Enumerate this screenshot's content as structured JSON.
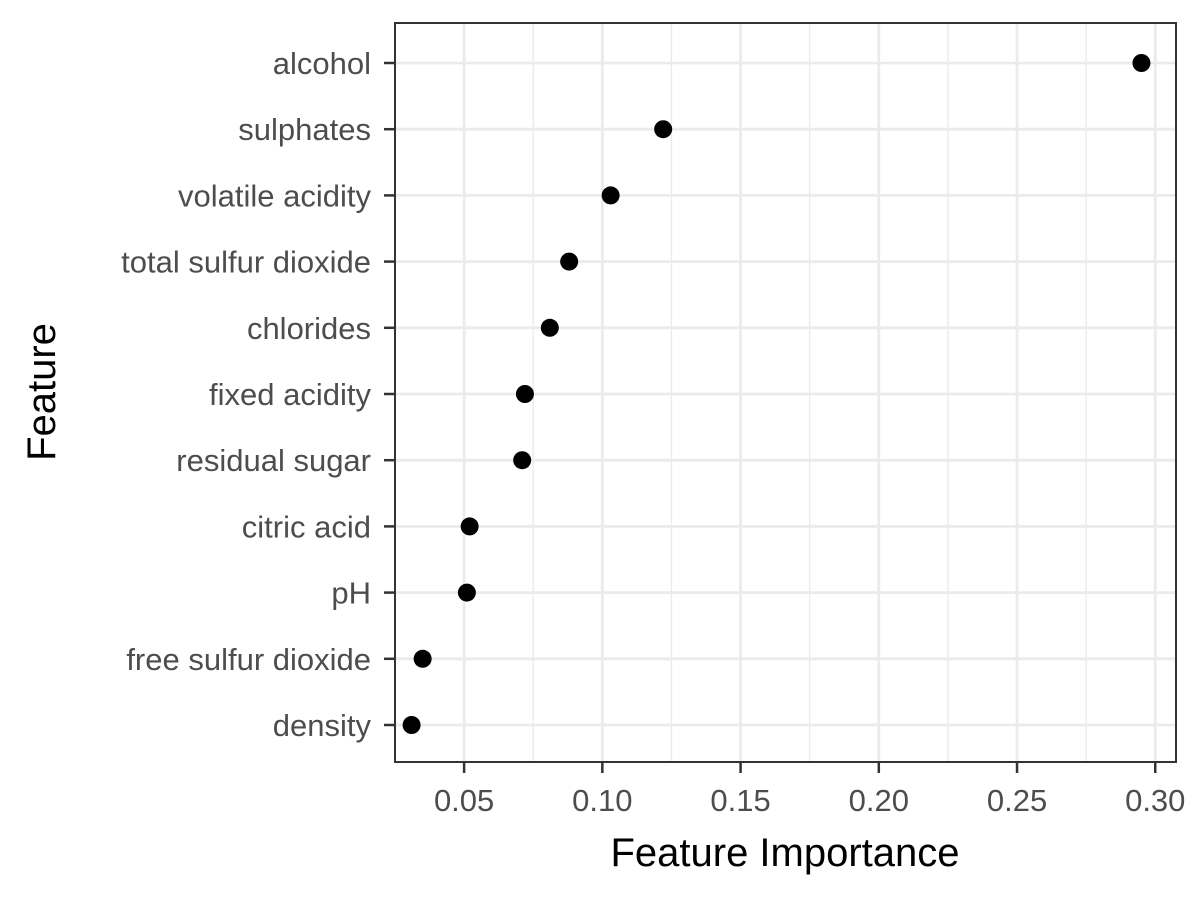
{
  "chart_data": {
    "type": "scatter",
    "title": "",
    "xlabel": "Feature Importance",
    "ylabel": "Feature",
    "xlim": [
      0.025,
      0.3075
    ],
    "x_ticks": [
      0.05,
      0.1,
      0.15,
      0.2,
      0.25,
      0.3
    ],
    "x_tick_labels": [
      "0.05",
      "0.10",
      "0.15",
      "0.20",
      "0.25",
      "0.30"
    ],
    "grid": true,
    "legend": "none",
    "categories": [
      "alcohol",
      "sulphates",
      "volatile acidity",
      "total sulfur dioxide",
      "chlorides",
      "fixed acidity",
      "residual sugar",
      "citric acid",
      "pH",
      "free sulfur dioxide",
      "density"
    ],
    "values": [
      0.295,
      0.122,
      0.103,
      0.088,
      0.081,
      0.072,
      0.071,
      0.052,
      0.051,
      0.035,
      0.031
    ],
    "colors": {
      "point": "#000000",
      "grid": "#ebebeb",
      "panel_border": "#333333",
      "tick_text": "#4d4d4d"
    }
  }
}
